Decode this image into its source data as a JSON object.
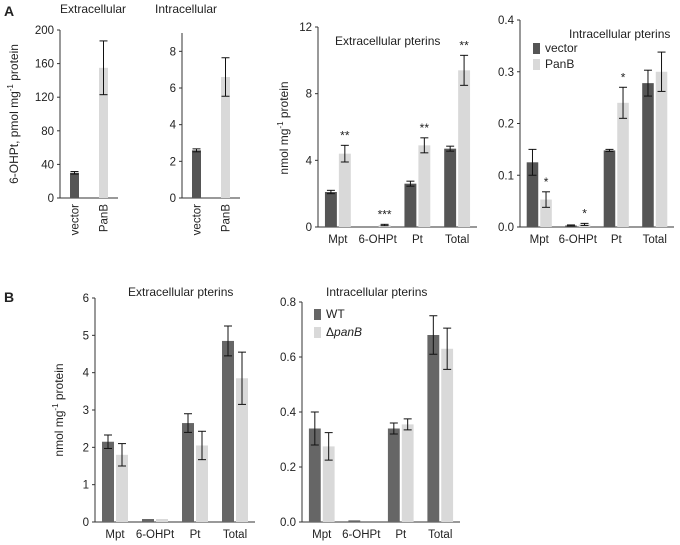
{
  "panels": {
    "a": "A",
    "b": "B"
  },
  "chart_data": [
    {
      "id": "a1",
      "type": "bar",
      "title": "Extracellular",
      "ylabel_html": "6-OHPt, pmol mg⁻¹ protein",
      "ylabel": "6-OHPt, pmol mg-1 protein",
      "ylim": [
        0,
        200
      ],
      "yticks": [
        "0",
        "40",
        "80",
        "120",
        "160",
        "200"
      ],
      "categories": [
        "vector",
        "PanB"
      ],
      "series": [
        {
          "name": "vector / PanB",
          "values": [
            30,
            155
          ],
          "errors": [
            1.5,
            32
          ],
          "colors": [
            "#555555",
            "#d9d9d9"
          ]
        }
      ]
    },
    {
      "id": "a2",
      "type": "bar",
      "title": "Intracellular",
      "ylim": [
        0,
        9
      ],
      "yticks": [
        "0",
        "2",
        "4",
        "6",
        "8"
      ],
      "categories": [
        "vector",
        "PanB"
      ],
      "series": [
        {
          "name": "vector / PanB",
          "values": [
            2.6,
            6.6
          ],
          "errors": [
            0.08,
            1.05
          ],
          "colors": [
            "#555555",
            "#d9d9d9"
          ]
        }
      ]
    },
    {
      "id": "a3",
      "type": "bar",
      "title": "Extracellular pterins",
      "ylabel": "nmol mg-1 protein",
      "ylim": [
        0,
        12
      ],
      "yticks": [
        "0",
        "4",
        "8",
        "12"
      ],
      "categories": [
        "Mpt",
        "6-OHPt",
        "Pt",
        "Total"
      ],
      "series": [
        {
          "name": "vector",
          "values": [
            2.1,
            0.0,
            2.6,
            4.7
          ],
          "errors": [
            0.1,
            0.0,
            0.15,
            0.15
          ],
          "color": "#555555"
        },
        {
          "name": "PanB",
          "values": [
            4.4,
            0.12,
            4.9,
            9.4
          ],
          "errors": [
            0.5,
            0.04,
            0.45,
            0.9
          ],
          "color": "#d9d9d9"
        }
      ],
      "annotations": [
        "**",
        "***",
        "**",
        "**"
      ]
    },
    {
      "id": "a4",
      "type": "bar",
      "title": "Intracellular pterins",
      "ylim": [
        0,
        0.4
      ],
      "yticks": [
        "0.0",
        "0.1",
        "0.2",
        "0.3",
        "0.4"
      ],
      "categories": [
        "Mpt",
        "6-OHPt",
        "Pt",
        "Total"
      ],
      "legend": {
        "position": "top-left",
        "entries": [
          "vector",
          "PanB"
        ]
      },
      "series": [
        {
          "name": "vector",
          "values": [
            0.125,
            0.003,
            0.148,
            0.278
          ],
          "errors": [
            0.025,
            0.001,
            0.002,
            0.025
          ],
          "color": "#555555"
        },
        {
          "name": "PanB",
          "values": [
            0.053,
            0.005,
            0.24,
            0.3
          ],
          "errors": [
            0.015,
            0.002,
            0.03,
            0.038
          ],
          "color": "#d9d9d9"
        }
      ],
      "annotations": [
        "*",
        "*",
        "*",
        ""
      ]
    },
    {
      "id": "b1",
      "type": "bar",
      "title": "Extracellular pterins",
      "ylabel": "nmol mg-1 protein",
      "ylim": [
        0,
        6
      ],
      "yticks": [
        "0",
        "1",
        "2",
        "3",
        "4",
        "5",
        "6"
      ],
      "categories": [
        "Mpt",
        "6-OHPt",
        "Pt",
        "Total"
      ],
      "series": [
        {
          "name": "WT",
          "values": [
            2.15,
            0.08,
            2.65,
            4.85
          ],
          "errors": [
            0.18,
            0.0,
            0.25,
            0.4
          ],
          "color": "#666666"
        },
        {
          "name": "ΔpanB",
          "values": [
            1.8,
            0.08,
            2.05,
            3.85
          ],
          "errors": [
            0.3,
            0.0,
            0.38,
            0.7
          ],
          "color": "#d9d9d9"
        }
      ]
    },
    {
      "id": "b2",
      "type": "bar",
      "title": "Intracellular pterins",
      "ylim": [
        0,
        0.8
      ],
      "yticks": [
        "0.0",
        "0.2",
        "0.4",
        "0.6",
        "0.8"
      ],
      "categories": [
        "Mpt",
        "6-OHPt",
        "Pt",
        "Total"
      ],
      "legend": {
        "position": "top-left",
        "entries": [
          "WT",
          "ΔpanB"
        ]
      },
      "series": [
        {
          "name": "WT",
          "values": [
            0.34,
            0.006,
            0.34,
            0.68
          ],
          "errors": [
            0.06,
            0.0,
            0.02,
            0.07
          ],
          "color": "#666666"
        },
        {
          "name": "ΔpanB",
          "values": [
            0.275,
            0.0,
            0.355,
            0.63
          ],
          "errors": [
            0.05,
            0.0,
            0.02,
            0.075
          ],
          "color": "#d9d9d9"
        }
      ]
    }
  ]
}
